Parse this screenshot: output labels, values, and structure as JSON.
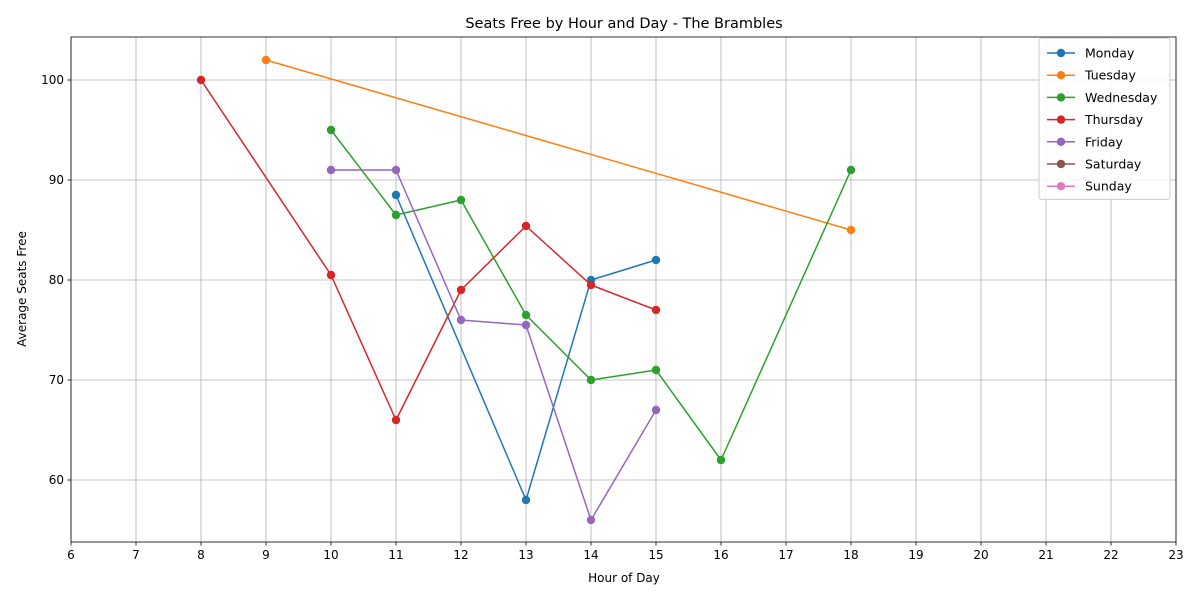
{
  "chart_data": {
    "type": "line",
    "title": "Seats Free by Hour and Day - The Brambles",
    "xlabel": "Hour of Day",
    "ylabel": "Average Seats Free",
    "xlim": [
      6,
      23
    ],
    "ylim": [
      53.8,
      104.3
    ],
    "xticks": [
      6,
      7,
      8,
      9,
      10,
      11,
      12,
      13,
      14,
      15,
      16,
      17,
      18,
      19,
      20,
      21,
      22,
      23
    ],
    "yticks": [
      60,
      70,
      80,
      90,
      100
    ],
    "grid": true,
    "legend_position": "top-right",
    "series": [
      {
        "name": "Monday",
        "color": "#1f77b4",
        "x": [
          11,
          13,
          14,
          15
        ],
        "y": [
          88.5,
          58,
          80,
          82
        ]
      },
      {
        "name": "Tuesday",
        "color": "#ff7f0e",
        "x": [
          9,
          18
        ],
        "y": [
          102,
          85
        ]
      },
      {
        "name": "Wednesday",
        "color": "#2ca02c",
        "x": [
          10,
          11,
          12,
          13,
          14,
          15,
          16,
          18
        ],
        "y": [
          95,
          86.5,
          88,
          76.5,
          70,
          71,
          62,
          91
        ]
      },
      {
        "name": "Thursday",
        "color": "#d62728",
        "x": [
          8,
          10,
          11,
          12,
          13,
          14,
          15
        ],
        "y": [
          100,
          80.5,
          66,
          79,
          85.4,
          79.5,
          77
        ]
      },
      {
        "name": "Friday",
        "color": "#9467bd",
        "x": [
          10,
          11,
          12,
          13,
          14,
          15
        ],
        "y": [
          91,
          91,
          76,
          75.5,
          56,
          67
        ]
      },
      {
        "name": "Saturday",
        "color": "#8c564b",
        "x": [],
        "y": []
      },
      {
        "name": "Sunday",
        "color": "#e377c2",
        "x": [],
        "y": []
      }
    ]
  }
}
